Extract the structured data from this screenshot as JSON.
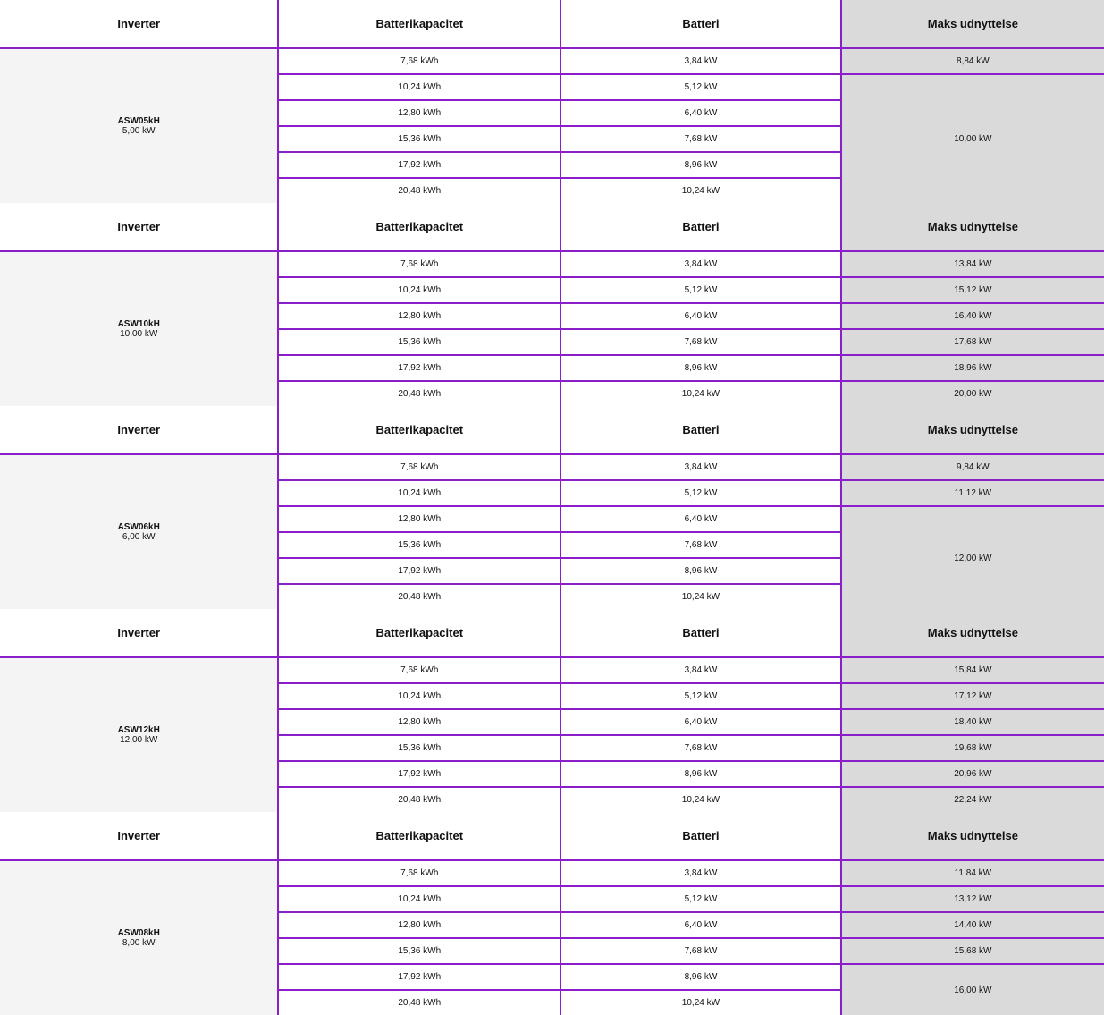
{
  "tables": [
    {
      "headers": [
        "Inverter",
        "Batterikapacitet",
        "Batteri",
        "Maks udnyttelse"
      ],
      "inverter": {
        "model": "ASW05kH",
        "power": "5,00 kW"
      },
      "rows": [
        [
          "7,68 kWh",
          "3,84 kW",
          "8,84 kW"
        ],
        [
          "10,24 kWh",
          "5,12 kW",
          "10,00 kW"
        ],
        [
          "12,80 kWh",
          "6,40 kW",
          null
        ],
        [
          "15,36 kWh",
          "7,68 kW",
          null
        ],
        [
          "17,92 kWh",
          "8,96 kW",
          null
        ],
        [
          "20,48 kWh",
          "10,24 kW",
          null
        ]
      ]
    },
    {
      "headers": [
        "Inverter",
        "Batterikapacitet",
        "Batteri",
        "Maks udnyttelse"
      ],
      "inverter": {
        "model": "ASW10kH",
        "power": "10,00 kW"
      },
      "rows": [
        [
          "7,68 kWh",
          "3,84 kW",
          "13,84 kW"
        ],
        [
          "10,24 kWh",
          "5,12 kW",
          "15,12 kW"
        ],
        [
          "12,80 kWh",
          "6,40 kW",
          "16,40 kW"
        ],
        [
          "15,36 kWh",
          "7,68 kW",
          "17,68 kW"
        ],
        [
          "17,92 kWh",
          "8,96 kW",
          "18,96 kW"
        ],
        [
          "20,48 kWh",
          "10,24 kW",
          "20,00 kW"
        ]
      ]
    },
    {
      "headers": [
        "Inverter",
        "Batterikapacitet",
        "Batteri",
        "Maks udnyttelse"
      ],
      "inverter": {
        "model": "ASW06kH",
        "power": "6,00 kW"
      },
      "rows": [
        [
          "7,68 kWh",
          "3,84 kW",
          "9,84 kW"
        ],
        [
          "10,24 kWh",
          "5,12 kW",
          "11,12 kW"
        ],
        [
          "12,80 kWh",
          "6,40 kW",
          "12,00 kW"
        ],
        [
          "15,36 kWh",
          "7,68 kW",
          null
        ],
        [
          "17,92 kWh",
          "8,96 kW",
          null
        ],
        [
          "20,48 kWh",
          "10,24 kW",
          null
        ]
      ]
    },
    {
      "headers": [
        "Inverter",
        "Batterikapacitet",
        "Batteri",
        "Maks udnyttelse"
      ],
      "inverter": {
        "model": "ASW12kH",
        "power": "12,00 kW"
      },
      "rows": [
        [
          "7,68 kWh",
          "3,84 kW",
          "15,84 kW"
        ],
        [
          "10,24 kWh",
          "5,12 kW",
          "17,12 kW"
        ],
        [
          "12,80 kWh",
          "6,40 kW",
          "18,40 kW"
        ],
        [
          "15,36 kWh",
          "7,68 kW",
          "19,68 kW"
        ],
        [
          "17,92 kWh",
          "8,96 kW",
          "20,96 kW"
        ],
        [
          "20,48 kWh",
          "10,24 kW",
          "22,24 kW"
        ]
      ]
    },
    {
      "headers": [
        "Inverter",
        "Batterikapacitet",
        "Batteri",
        "Maks udnyttelse"
      ],
      "inverter": {
        "model": "ASW08kH",
        "power": "8,00 kW"
      },
      "rows": [
        [
          "7,68 kWh",
          "3,84 kW",
          "11,84 kW"
        ],
        [
          "10,24 kWh",
          "5,12 kW",
          "13,12 kW"
        ],
        [
          "12,80 kWh",
          "6,40 kW",
          "14,40 kW"
        ],
        [
          "15,36 kWh",
          "7,68 kW",
          "15,68 kW"
        ],
        [
          "17,92 kWh",
          "8,96 kW",
          "16,00 kW"
        ],
        [
          "20,48 kWh",
          "10,24 kW",
          null
        ]
      ]
    }
  ]
}
